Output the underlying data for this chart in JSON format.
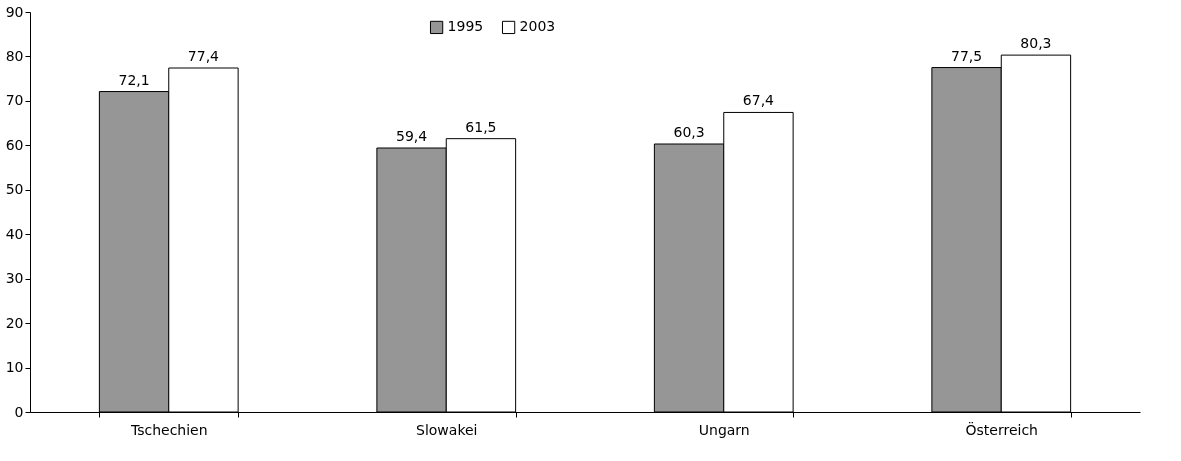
{
  "chart_data": {
    "type": "bar",
    "categories": [
      "Tschechien",
      "Slowakei",
      "Ungarn",
      "Österreich"
    ],
    "series": [
      {
        "name": "1995",
        "color": "#969696",
        "values": [
          72.1,
          59.4,
          60.3,
          77.5
        ],
        "value_labels": [
          "72,1",
          "59,4",
          "60,3",
          "77,5"
        ]
      },
      {
        "name": "2003",
        "color": "#ffffff",
        "values": [
          77.4,
          61.5,
          67.4,
          80.3
        ],
        "value_labels": [
          "77,4",
          "61,5",
          "67,4",
          "80,3"
        ]
      }
    ],
    "ylim": [
      0,
      90
    ],
    "yticks": [
      0,
      10,
      20,
      30,
      40,
      50,
      60,
      70,
      80,
      90
    ],
    "grid": false,
    "legend": "top"
  }
}
